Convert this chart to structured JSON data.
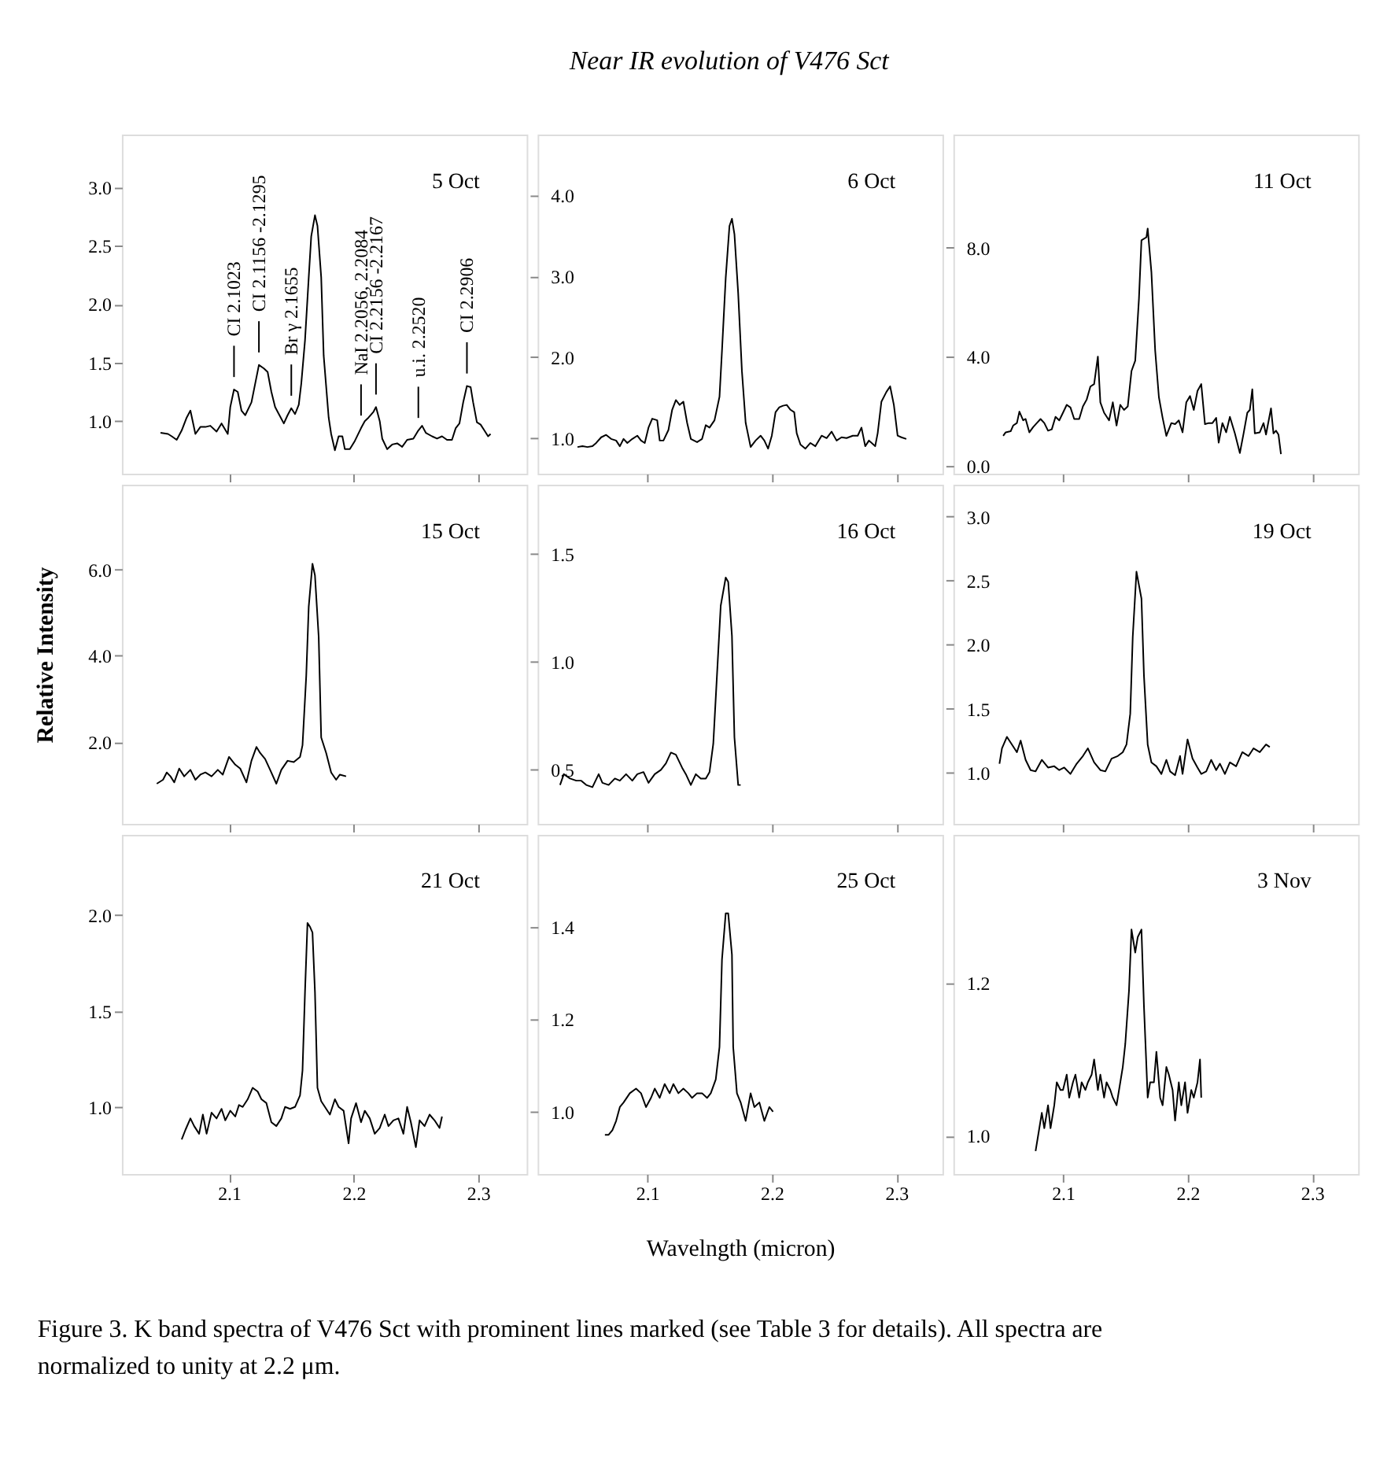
{
  "chart_data": [
    {
      "type": "other",
      "title": "Near IR evolution of V476 Sct"
    },
    {
      "type": "line",
      "annotations": [
        "5 Oct",
        {
          "text": "CI 2.1023",
          "x": 2.104,
          "y": 1.27
        },
        {
          "text": "CI 2.1156 -2.1295",
          "x": 2.124,
          "y": 1.48
        },
        {
          "text": "Br γ 2.1655",
          "x": 2.15,
          "y": 1.11
        },
        {
          "text": "NaI 2.2056, 2.2084",
          "x": 2.206,
          "y": 0.94
        },
        {
          "text": "CI 2.2156 -2.2167",
          "x": 2.218,
          "y": 1.12
        },
        {
          "text": "u.i. 2.2520",
          "x": 2.252,
          "y": 0.92
        },
        {
          "text": "CI 2.2906",
          "x": 2.291,
          "y": 1.3
        }
      ],
      "xlim": [
        2.014,
        2.339
      ],
      "ylim": [
        0.55,
        3.45
      ],
      "xticks": [
        2.1,
        2.2,
        2.3
      ],
      "yticks": [
        {
          "value": 1,
          "label": "1.0"
        },
        {
          "value": 1.5,
          "label": "1.5"
        },
        {
          "value": 2,
          "label": "2.0"
        },
        {
          "value": 2.5,
          "label": "2.5"
        },
        {
          "value": 3,
          "label": "3.0"
        }
      ],
      "tick_labels": "y",
      "series": [
        {
          "color": "#000000",
          "x": [
            2.045,
            2.051,
            2.054,
            2.058,
            2.062,
            2.066,
            2.069,
            2.073,
            2.077,
            2.081,
            2.085,
            2.09,
            2.094,
            2.099,
            2.101,
            2.104,
            2.107,
            2.11,
            2.113,
            2.118,
            2.121,
            2.124,
            2.128,
            2.131,
            2.134,
            2.137,
            2.14,
            2.144,
            2.147,
            2.15,
            2.153,
            2.156,
            2.158,
            2.161,
            2.164,
            2.166,
            2.169,
            2.171,
            2.174,
            2.176,
            2.18,
            2.182,
            2.185,
            2.188,
            2.191,
            2.193,
            2.197,
            2.201,
            2.206,
            2.209,
            2.212,
            2.216,
            2.218,
            2.221,
            2.223,
            2.227,
            2.231,
            2.235,
            2.239,
            2.243,
            2.248,
            2.252,
            2.255,
            2.258,
            2.263,
            2.267,
            2.271,
            2.275,
            2.279,
            2.282,
            2.285,
            2.288,
            2.291,
            2.294,
            2.296,
            2.299,
            2.302,
            2.305,
            2.308,
            2.31
          ],
          "values": [
            0.9,
            0.89,
            0.87,
            0.84,
            0.92,
            1.03,
            1.09,
            0.89,
            0.95,
            0.95,
            0.96,
            0.91,
            0.98,
            0.89,
            1.12,
            1.27,
            1.25,
            1.09,
            1.05,
            1.16,
            1.32,
            1.48,
            1.45,
            1.42,
            1.25,
            1.12,
            1.06,
            0.98,
            1.05,
            1.11,
            1.06,
            1.14,
            1.32,
            1.69,
            2.23,
            2.58,
            2.76,
            2.67,
            2.23,
            1.56,
            1.03,
            0.89,
            0.75,
            0.87,
            0.87,
            0.76,
            0.76,
            0.83,
            0.94,
            1.0,
            1.03,
            1.08,
            1.12,
            1.0,
            0.85,
            0.76,
            0.8,
            0.81,
            0.78,
            0.84,
            0.85,
            0.92,
            0.96,
            0.9,
            0.87,
            0.85,
            0.87,
            0.84,
            0.84,
            0.94,
            0.98,
            1.16,
            1.3,
            1.29,
            1.16,
            0.99,
            0.97,
            0.92,
            0.87,
            0.89
          ]
        }
      ]
    },
    {
      "type": "line",
      "annotations": [
        "6 Oct"
      ],
      "xlim": [
        2.012,
        2.337
      ],
      "ylim": [
        0.56,
        4.75
      ],
      "xticks": [
        2.1,
        2.2,
        2.3
      ],
      "yticks": [
        {
          "value": 1,
          "label": "1.0"
        },
        {
          "value": 2,
          "label": "2.0"
        },
        {
          "value": 3,
          "label": "3.0"
        },
        {
          "value": 4,
          "label": "4.0"
        }
      ],
      "tick_labels": "y",
      "series": [
        {
          "color": "#000000",
          "x": [
            2.044,
            2.048,
            2.052,
            2.056,
            2.059,
            2.063,
            2.067,
            2.071,
            2.075,
            2.078,
            2.081,
            2.084,
            2.088,
            2.092,
            2.095,
            2.098,
            2.101,
            2.104,
            2.108,
            2.11,
            2.113,
            2.117,
            2.12,
            2.123,
            2.126,
            2.129,
            2.132,
            2.135,
            2.14,
            2.144,
            2.147,
            2.15,
            2.154,
            2.158,
            2.16,
            2.163,
            2.166,
            2.168,
            2.17,
            2.173,
            2.176,
            2.179,
            2.183,
            2.187,
            2.191,
            2.194,
            2.197,
            2.2,
            2.203,
            2.206,
            2.209,
            2.212,
            2.215,
            2.218,
            2.22,
            2.223,
            2.227,
            2.231,
            2.235,
            2.24,
            2.244,
            2.248,
            2.252,
            2.256,
            2.26,
            2.265,
            2.269,
            2.272,
            2.275,
            2.278,
            2.283,
            2.285,
            2.288,
            2.292,
            2.295,
            2.298,
            2.301,
            2.304,
            2.308
          ],
          "values": [
            0.89,
            0.9,
            0.89,
            0.9,
            0.94,
            1.01,
            1.04,
            0.99,
            0.97,
            0.9,
            0.99,
            0.94,
            0.99,
            1.03,
            0.97,
            0.94,
            1.13,
            1.24,
            1.22,
            0.97,
            0.97,
            1.1,
            1.35,
            1.47,
            1.41,
            1.45,
            1.19,
            0.99,
            0.95,
            0.99,
            1.16,
            1.13,
            1.22,
            1.51,
            2.08,
            2.98,
            3.62,
            3.71,
            3.52,
            2.79,
            1.83,
            1.19,
            0.89,
            0.97,
            1.03,
            0.97,
            0.87,
            1.03,
            1.32,
            1.38,
            1.4,
            1.41,
            1.35,
            1.32,
            1.06,
            0.92,
            0.87,
            0.94,
            0.9,
            1.03,
            1.0,
            1.08,
            0.97,
            1.01,
            1.0,
            1.03,
            1.03,
            1.13,
            0.9,
            0.97,
            0.9,
            1.06,
            1.45,
            1.57,
            1.64,
            1.41,
            1.03,
            1.01,
            0.99
          ]
        }
      ]
    },
    {
      "type": "line",
      "annotations": [
        "11 Oct"
      ],
      "xlim": [
        2.012,
        2.337
      ],
      "ylim": [
        -0.3,
        12.15
      ],
      "xticks": [
        2.1,
        2.2,
        2.3
      ],
      "yticks": [
        {
          "value": 0,
          "label": "0.0"
        },
        {
          "value": 4,
          "label": "4.0"
        },
        {
          "value": 8,
          "label": "8.0"
        }
      ],
      "tick_labels": "y",
      "series": [
        {
          "color": "#000000",
          "x": [
            2.052,
            2.054,
            2.058,
            2.06,
            2.063,
            2.065,
            2.068,
            2.07,
            2.073,
            2.076,
            2.079,
            2.082,
            2.085,
            2.088,
            2.091,
            2.094,
            2.097,
            2.1,
            2.103,
            2.106,
            2.109,
            2.113,
            2.116,
            2.119,
            2.122,
            2.125,
            2.128,
            2.13,
            2.133,
            2.137,
            2.14,
            2.143,
            2.146,
            2.149,
            2.152,
            2.155,
            2.158,
            2.161,
            2.163,
            2.167,
            2.168,
            2.171,
            2.174,
            2.177,
            2.18,
            2.183,
            2.187,
            2.19,
            2.193,
            2.196,
            2.199,
            2.202,
            2.205,
            2.208,
            2.211,
            2.214,
            2.217,
            2.22,
            2.223,
            2.225,
            2.228,
            2.231,
            2.234,
            2.238,
            2.242,
            2.245,
            2.248,
            2.25,
            2.252,
            2.254,
            2.258,
            2.261,
            2.263,
            2.267,
            2.269,
            2.271,
            2.273,
            2.275
          ],
          "values": [
            1.09,
            1.22,
            1.26,
            1.47,
            1.56,
            1.98,
            1.66,
            1.71,
            1.22,
            1.41,
            1.56,
            1.71,
            1.56,
            1.28,
            1.33,
            1.79,
            1.66,
            1.94,
            2.23,
            2.13,
            1.71,
            1.71,
            2.17,
            2.42,
            2.9,
            2.99,
            4.0,
            2.32,
            1.94,
            1.66,
            2.32,
            1.47,
            2.23,
            2.04,
            2.17,
            3.47,
            3.85,
            6.13,
            8.27,
            8.38,
            8.7,
            7.09,
            4.23,
            2.51,
            1.75,
            1.09,
            1.56,
            1.52,
            1.66,
            1.22,
            2.32,
            2.55,
            2.04,
            2.74,
            2.99,
            1.52,
            1.56,
            1.56,
            1.75,
            0.84,
            1.56,
            1.22,
            1.79,
            1.18,
            0.46,
            1.18,
            1.94,
            2.04,
            2.8,
            1.18,
            1.22,
            1.56,
            1.14,
            2.1,
            1.18,
            1.28,
            1.14,
            0.42
          ]
        }
      ]
    },
    {
      "type": "line",
      "ylabel": "Relative Intensity",
      "annotations": [
        "15 Oct"
      ],
      "xlim": [
        2.014,
        2.339
      ],
      "ylim": [
        0.11,
        7.96
      ],
      "xticks": [
        2.1,
        2.2,
        2.3
      ],
      "yticks": [
        {
          "value": 2,
          "label": "2.0"
        },
        {
          "value": 4,
          "label": "4.0"
        },
        {
          "value": 6,
          "label": "6.0"
        }
      ],
      "tick_labels": "y",
      "series": [
        {
          "color": "#000000",
          "x": [
            2.042,
            2.047,
            2.05,
            2.053,
            2.056,
            2.06,
            2.064,
            2.069,
            2.073,
            2.077,
            2.081,
            2.086,
            2.091,
            2.095,
            2.1,
            2.105,
            2.109,
            2.114,
            2.118,
            2.122,
            2.125,
            2.129,
            2.133,
            2.138,
            2.142,
            2.147,
            2.152,
            2.157,
            2.159,
            2.162,
            2.164,
            2.167,
            2.169,
            2.172,
            2.174,
            2.178,
            2.182,
            2.186,
            2.189,
            2.194
          ],
          "values": [
            1.04,
            1.13,
            1.3,
            1.21,
            1.07,
            1.39,
            1.21,
            1.36,
            1.13,
            1.25,
            1.3,
            1.21,
            1.36,
            1.25,
            1.66,
            1.48,
            1.39,
            1.07,
            1.57,
            1.89,
            1.75,
            1.61,
            1.36,
            1.04,
            1.36,
            1.57,
            1.54,
            1.66,
            1.93,
            3.54,
            5.14,
            6.13,
            5.86,
            4.43,
            2.11,
            1.75,
            1.3,
            1.13,
            1.25,
            1.21
          ]
        }
      ]
    },
    {
      "type": "line",
      "annotations": [
        "16 Oct"
      ],
      "xlim": [
        2.012,
        2.337
      ],
      "ylim": [
        0.25,
        1.82
      ],
      "xticks": [
        2.1,
        2.2,
        2.3
      ],
      "yticks": [
        {
          "value": 0.5,
          "label": "0.5"
        },
        {
          "value": 1,
          "label": "1.0"
        },
        {
          "value": 1.5,
          "label": "1.5"
        }
      ],
      "tick_labels": "y",
      "series": [
        {
          "color": "#000000",
          "x": [
            2.03,
            2.033,
            2.038,
            2.043,
            2.047,
            2.051,
            2.056,
            2.061,
            2.064,
            2.069,
            2.074,
            2.078,
            2.083,
            2.088,
            2.092,
            2.097,
            2.101,
            2.106,
            2.111,
            2.115,
            2.119,
            2.123,
            2.128,
            2.131,
            2.135,
            2.139,
            2.143,
            2.147,
            2.15,
            2.153,
            2.156,
            2.159,
            2.163,
            2.165,
            2.168,
            2.17,
            2.173,
            2.175
          ],
          "values": [
            0.43,
            0.48,
            0.46,
            0.45,
            0.45,
            0.43,
            0.42,
            0.48,
            0.44,
            0.43,
            0.46,
            0.45,
            0.48,
            0.45,
            0.48,
            0.49,
            0.44,
            0.48,
            0.5,
            0.53,
            0.58,
            0.57,
            0.51,
            0.48,
            0.43,
            0.48,
            0.46,
            0.46,
            0.49,
            0.62,
            0.94,
            1.26,
            1.39,
            1.37,
            1.12,
            0.65,
            0.43,
            0.43
          ]
        }
      ]
    },
    {
      "type": "line",
      "annotations": [
        "19 Oct"
      ],
      "xlim": [
        2.012,
        2.337
      ],
      "ylim": [
        0.6,
        3.25
      ],
      "xticks": [
        2.1,
        2.2,
        2.3
      ],
      "yticks": [
        {
          "value": 1,
          "label": "1.0"
        },
        {
          "value": 1.5,
          "label": "1.5"
        },
        {
          "value": 2,
          "label": "2.0"
        },
        {
          "value": 2.5,
          "label": "2.5"
        },
        {
          "value": 3,
          "label": "3.0"
        }
      ],
      "tick_labels": "y",
      "series": [
        {
          "color": "#000000",
          "x": [
            2.049,
            2.051,
            2.055,
            2.059,
            2.063,
            2.066,
            2.07,
            2.074,
            2.078,
            2.083,
            2.088,
            2.093,
            2.097,
            2.101,
            2.106,
            2.111,
            2.116,
            2.12,
            2.125,
            2.13,
            2.134,
            2.139,
            2.144,
            2.148,
            2.151,
            2.154,
            2.156,
            2.159,
            2.163,
            2.165,
            2.168,
            2.171,
            2.175,
            2.179,
            2.183,
            2.186,
            2.19,
            2.194,
            2.196,
            2.2,
            2.204,
            2.208,
            2.211,
            2.215,
            2.219,
            2.223,
            2.226,
            2.23,
            2.234,
            2.239,
            2.244,
            2.249,
            2.253,
            2.258,
            2.263,
            2.266
          ],
          "values": [
            1.07,
            1.19,
            1.28,
            1.22,
            1.16,
            1.25,
            1.1,
            1.02,
            1.01,
            1.1,
            1.04,
            1.05,
            1.02,
            1.04,
            0.99,
            1.07,
            1.13,
            1.19,
            1.08,
            1.02,
            1.01,
            1.11,
            1.13,
            1.16,
            1.22,
            1.46,
            2.06,
            2.57,
            2.36,
            1.76,
            1.22,
            1.08,
            1.05,
            0.99,
            1.1,
            1.01,
            0.98,
            1.13,
            0.99,
            1.26,
            1.11,
            1.04,
            0.99,
            1.01,
            1.1,
            1.02,
            1.07,
            0.99,
            1.08,
            1.05,
            1.16,
            1.13,
            1.19,
            1.16,
            1.22,
            1.2
          ]
        }
      ]
    },
    {
      "type": "line",
      "annotations": [
        "21 Oct"
      ],
      "xlim": [
        2.014,
        2.339
      ],
      "ylim": [
        0.65,
        2.42
      ],
      "xticks": [
        2.1,
        2.2,
        2.3
      ],
      "yticks": [
        {
          "value": 1,
          "label": "1.0"
        },
        {
          "value": 1.5,
          "label": "1.5"
        },
        {
          "value": 2,
          "label": "2.0"
        }
      ],
      "series": [
        {
          "color": "#000000",
          "x": [
            2.062,
            2.065,
            2.069,
            2.072,
            2.076,
            2.079,
            2.082,
            2.086,
            2.09,
            2.094,
            2.097,
            2.101,
            2.105,
            2.108,
            2.111,
            2.115,
            2.119,
            2.123,
            2.126,
            2.13,
            2.134,
            2.138,
            2.142,
            2.145,
            2.149,
            2.153,
            2.157,
            2.159,
            2.161,
            2.163,
            2.165,
            2.167,
            2.169,
            2.171,
            2.174,
            2.177,
            2.181,
            2.185,
            2.188,
            2.192,
            2.196,
            2.198,
            2.202,
            2.206,
            2.209,
            2.213,
            2.217,
            2.221,
            2.225,
            2.228,
            2.232,
            2.236,
            2.24,
            2.243,
            2.246,
            2.25,
            2.253,
            2.257,
            2.261,
            2.265,
            2.269,
            2.271
          ],
          "values": [
            0.83,
            0.88,
            0.94,
            0.9,
            0.86,
            0.96,
            0.86,
            0.97,
            0.94,
            0.99,
            0.93,
            0.98,
            0.95,
            1.01,
            1.0,
            1.04,
            1.1,
            1.08,
            1.04,
            1.02,
            0.92,
            0.9,
            0.94,
            1.0,
            0.99,
            1.0,
            1.06,
            1.19,
            1.6,
            1.96,
            1.94,
            1.91,
            1.6,
            1.1,
            1.03,
            1.0,
            0.96,
            1.04,
            1.0,
            0.98,
            0.81,
            0.94,
            1.02,
            0.92,
            0.98,
            0.94,
            0.86,
            0.89,
            0.96,
            0.9,
            0.93,
            0.94,
            0.86,
            1.0,
            0.92,
            0.79,
            0.93,
            0.9,
            0.96,
            0.93,
            0.89,
            0.95
          ]
        }
      ]
    },
    {
      "type": "line",
      "xlabel": "Wavelngth (micron)",
      "annotations": [
        "25 Oct"
      ],
      "xlim": [
        2.012,
        2.337
      ],
      "ylim": [
        0.865,
        1.6
      ],
      "xticks": [
        2.1,
        2.2,
        2.3
      ],
      "yticks": [
        {
          "value": 1,
          "label": "1.0"
        },
        {
          "value": 1.2,
          "label": "1.2"
        },
        {
          "value": 1.4,
          "label": "1.4"
        }
      ],
      "series": [
        {
          "color": "#000000",
          "x": [
            2.066,
            2.069,
            2.072,
            2.075,
            2.078,
            2.081,
            2.086,
            2.091,
            2.095,
            2.099,
            2.103,
            2.106,
            2.11,
            2.114,
            2.118,
            2.121,
            2.125,
            2.129,
            2.133,
            2.136,
            2.14,
            2.144,
            2.148,
            2.151,
            2.155,
            2.158,
            2.16,
            2.163,
            2.165,
            2.168,
            2.169,
            2.172,
            2.175,
            2.179,
            2.183,
            2.186,
            2.19,
            2.194,
            2.198,
            2.201
          ],
          "values": [
            0.95,
            0.95,
            0.96,
            0.98,
            1.01,
            1.02,
            1.04,
            1.05,
            1.04,
            1.01,
            1.03,
            1.05,
            1.03,
            1.06,
            1.04,
            1.06,
            1.04,
            1.05,
            1.04,
            1.03,
            1.04,
            1.04,
            1.03,
            1.04,
            1.07,
            1.14,
            1.33,
            1.43,
            1.43,
            1.34,
            1.14,
            1.04,
            1.02,
            0.98,
            1.04,
            1.01,
            1.02,
            0.98,
            1.01,
            1.0
          ]
        }
      ]
    },
    {
      "type": "line",
      "annotations": [
        "3 Nov"
      ],
      "xlim": [
        2.012,
        2.337
      ],
      "ylim": [
        0.95,
        1.394
      ],
      "xticks": [
        2.1,
        2.2,
        2.3
      ],
      "yticks": [
        {
          "value": 1,
          "label": "1.0"
        },
        {
          "value": 1.2,
          "label": "1.2"
        }
      ],
      "series": [
        {
          "color": "#000000",
          "x": [
            2.078,
            2.08,
            2.083,
            2.085,
            2.088,
            2.09,
            2.093,
            2.095,
            2.098,
            2.1,
            2.103,
            2.105,
            2.108,
            2.11,
            2.113,
            2.115,
            2.118,
            2.12,
            2.123,
            2.125,
            2.128,
            2.13,
            2.133,
            2.135,
            2.138,
            2.14,
            2.143,
            2.145,
            2.148,
            2.15,
            2.153,
            2.155,
            2.158,
            2.16,
            2.163,
            2.165,
            2.168,
            2.17,
            2.173,
            2.175,
            2.178,
            2.18,
            2.183,
            2.185,
            2.188,
            2.19,
            2.193,
            2.195,
            2.198,
            2.2,
            2.203,
            2.205,
            2.208,
            2.21,
            2.211
          ],
          "values": [
            0.98,
            1.0,
            1.03,
            1.01,
            1.04,
            1.01,
            1.04,
            1.07,
            1.06,
            1.06,
            1.08,
            1.05,
            1.07,
            1.08,
            1.05,
            1.07,
            1.06,
            1.07,
            1.08,
            1.1,
            1.06,
            1.08,
            1.05,
            1.07,
            1.06,
            1.05,
            1.04,
            1.06,
            1.09,
            1.12,
            1.19,
            1.27,
            1.24,
            1.26,
            1.27,
            1.17,
            1.05,
            1.07,
            1.07,
            1.11,
            1.05,
            1.04,
            1.09,
            1.08,
            1.06,
            1.02,
            1.07,
            1.04,
            1.07,
            1.03,
            1.06,
            1.05,
            1.07,
            1.1,
            1.05
          ]
        }
      ]
    },
    {
      "type": "other",
      "annotations": [
        "Figure 3. K band spectra of V476 Sct with prominent lines marked (see Table 3 for details). All spectra are normalized to unity at 2.2 μm."
      ]
    }
  ]
}
